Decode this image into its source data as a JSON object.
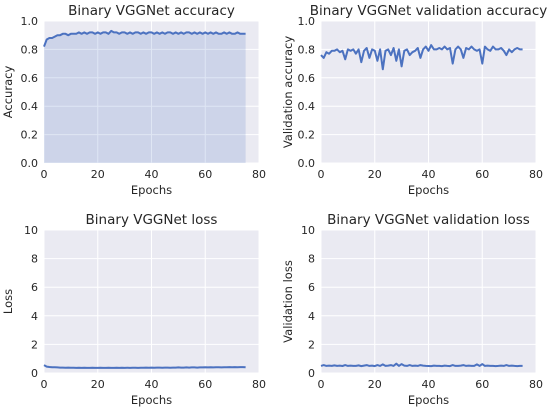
{
  "chart_data": [
    {
      "type": "area",
      "title": "Binary VGGNet accuracy",
      "xlabel": "Epochs",
      "ylabel": "Accuracy",
      "xlim": [
        0,
        80
      ],
      "ylim": [
        0,
        1.0
      ],
      "xticks": [
        "0",
        "20",
        "40",
        "60",
        "80"
      ],
      "yticks": [
        "0.0",
        "0.2",
        "0.4",
        "0.6",
        "0.8",
        "1.0"
      ],
      "grid": true,
      "color": "#4c72c0",
      "x": [
        0,
        1,
        2,
        3,
        4,
        5,
        6,
        7,
        8,
        9,
        10,
        11,
        12,
        13,
        14,
        15,
        16,
        17,
        18,
        19,
        20,
        21,
        22,
        23,
        24,
        25,
        26,
        27,
        28,
        29,
        30,
        31,
        32,
        33,
        34,
        35,
        36,
        37,
        38,
        39,
        40,
        41,
        42,
        43,
        44,
        45,
        46,
        47,
        48,
        49,
        50,
        51,
        52,
        53,
        54,
        55,
        56,
        57,
        58,
        59,
        60,
        61,
        62,
        63,
        64,
        65,
        66,
        67,
        68,
        69,
        70,
        71,
        72,
        73,
        74,
        75
      ],
      "values": [
        0.82,
        0.87,
        0.88,
        0.88,
        0.89,
        0.9,
        0.9,
        0.91,
        0.91,
        0.9,
        0.91,
        0.91,
        0.91,
        0.92,
        0.91,
        0.92,
        0.91,
        0.92,
        0.92,
        0.91,
        0.92,
        0.91,
        0.92,
        0.92,
        0.91,
        0.93,
        0.92,
        0.92,
        0.91,
        0.92,
        0.92,
        0.91,
        0.92,
        0.91,
        0.92,
        0.92,
        0.91,
        0.92,
        0.91,
        0.92,
        0.92,
        0.91,
        0.92,
        0.91,
        0.92,
        0.91,
        0.92,
        0.92,
        0.91,
        0.92,
        0.91,
        0.92,
        0.91,
        0.92,
        0.92,
        0.91,
        0.92,
        0.91,
        0.92,
        0.91,
        0.92,
        0.91,
        0.92,
        0.91,
        0.92,
        0.91,
        0.91,
        0.92,
        0.91,
        0.92,
        0.91,
        0.91,
        0.92,
        0.91,
        0.91,
        0.91
      ]
    },
    {
      "type": "line",
      "title": "Binary VGGNet validation accuracy",
      "xlabel": "Epochs",
      "ylabel": "Validation accuracy",
      "xlim": [
        0,
        80
      ],
      "ylim": [
        0,
        1.0
      ],
      "xticks": [
        "0",
        "20",
        "40",
        "60",
        "80"
      ],
      "yticks": [
        "0.0",
        "0.2",
        "0.4",
        "0.6",
        "0.8",
        "1.0"
      ],
      "grid": true,
      "color": "#4c72c0",
      "x": [
        0,
        1,
        2,
        3,
        4,
        5,
        6,
        7,
        8,
        9,
        10,
        11,
        12,
        13,
        14,
        15,
        16,
        17,
        18,
        19,
        20,
        21,
        22,
        23,
        24,
        25,
        26,
        27,
        28,
        29,
        30,
        31,
        32,
        33,
        34,
        35,
        36,
        37,
        38,
        39,
        40,
        41,
        42,
        43,
        44,
        45,
        46,
        47,
        48,
        49,
        50,
        51,
        52,
        53,
        54,
        55,
        56,
        57,
        58,
        59,
        60,
        61,
        62,
        63,
        64,
        65,
        66,
        67,
        68,
        69,
        70,
        71,
        72,
        73,
        74,
        75
      ],
      "values": [
        0.76,
        0.74,
        0.78,
        0.77,
        0.79,
        0.79,
        0.8,
        0.78,
        0.79,
        0.73,
        0.8,
        0.79,
        0.8,
        0.77,
        0.8,
        0.71,
        0.79,
        0.81,
        0.74,
        0.8,
        0.79,
        0.72,
        0.8,
        0.66,
        0.79,
        0.8,
        0.76,
        0.81,
        0.72,
        0.8,
        0.68,
        0.79,
        0.8,
        0.76,
        0.78,
        0.79,
        0.81,
        0.74,
        0.8,
        0.82,
        0.79,
        0.83,
        0.8,
        0.8,
        0.81,
        0.8,
        0.82,
        0.8,
        0.81,
        0.7,
        0.8,
        0.82,
        0.8,
        0.74,
        0.81,
        0.8,
        0.82,
        0.8,
        0.79,
        0.8,
        0.7,
        0.82,
        0.8,
        0.79,
        0.82,
        0.8,
        0.8,
        0.81,
        0.79,
        0.76,
        0.8,
        0.78,
        0.8,
        0.81,
        0.8,
        0.8
      ]
    },
    {
      "type": "line",
      "title": "Binary VGGNet loss",
      "xlabel": "Epochs",
      "ylabel": "Loss",
      "xlim": [
        0,
        80
      ],
      "ylim": [
        0,
        10
      ],
      "xticks": [
        "0",
        "20",
        "40",
        "60",
        "80"
      ],
      "yticks": [
        "0",
        "2",
        "4",
        "6",
        "8",
        "10"
      ],
      "grid": true,
      "color": "#4c72c0",
      "x": [
        0,
        1,
        2,
        3,
        4,
        5,
        6,
        7,
        8,
        9,
        10,
        11,
        12,
        13,
        14,
        15,
        16,
        17,
        18,
        19,
        20,
        21,
        22,
        23,
        24,
        25,
        26,
        27,
        28,
        29,
        30,
        31,
        32,
        33,
        34,
        35,
        36,
        37,
        38,
        39,
        40,
        41,
        42,
        43,
        44,
        45,
        46,
        47,
        48,
        49,
        50,
        51,
        52,
        53,
        54,
        55,
        56,
        57,
        58,
        59,
        60,
        61,
        62,
        63,
        64,
        65,
        66,
        67,
        68,
        69,
        70,
        71,
        72,
        73,
        74,
        75
      ],
      "values": [
        0.55,
        0.45,
        0.42,
        0.4,
        0.4,
        0.39,
        0.38,
        0.38,
        0.37,
        0.38,
        0.37,
        0.37,
        0.36,
        0.37,
        0.36,
        0.37,
        0.36,
        0.36,
        0.37,
        0.36,
        0.36,
        0.37,
        0.36,
        0.36,
        0.37,
        0.36,
        0.36,
        0.37,
        0.36,
        0.37,
        0.36,
        0.37,
        0.36,
        0.37,
        0.37,
        0.36,
        0.37,
        0.37,
        0.38,
        0.37,
        0.38,
        0.37,
        0.38,
        0.38,
        0.37,
        0.38,
        0.38,
        0.37,
        0.38,
        0.38,
        0.39,
        0.38,
        0.38,
        0.39,
        0.38,
        0.39,
        0.39,
        0.38,
        0.39,
        0.39,
        0.4,
        0.39,
        0.4,
        0.39,
        0.4,
        0.4,
        0.39,
        0.4,
        0.4,
        0.41,
        0.4,
        0.41,
        0.4,
        0.41,
        0.41,
        0.4
      ]
    },
    {
      "type": "line",
      "title": "Binary VGGNet validation loss",
      "xlabel": "Epochs",
      "ylabel": "Validation loss",
      "xlim": [
        0,
        80
      ],
      "ylim": [
        0,
        10
      ],
      "xticks": [
        "0",
        "20",
        "40",
        "60",
        "80"
      ],
      "yticks": [
        "0",
        "2",
        "4",
        "6",
        "8",
        "10"
      ],
      "grid": true,
      "color": "#4c72c0",
      "x": [
        0,
        1,
        2,
        3,
        4,
        5,
        6,
        7,
        8,
        9,
        10,
        11,
        12,
        13,
        14,
        15,
        16,
        17,
        18,
        19,
        20,
        21,
        22,
        23,
        24,
        25,
        26,
        27,
        28,
        29,
        30,
        31,
        32,
        33,
        34,
        35,
        36,
        37,
        38,
        39,
        40,
        41,
        42,
        43,
        44,
        45,
        46,
        47,
        48,
        49,
        50,
        51,
        52,
        53,
        54,
        55,
        56,
        57,
        58,
        59,
        60,
        61,
        62,
        63,
        64,
        65,
        66,
        67,
        68,
        69,
        70,
        71,
        72,
        73,
        74,
        75
      ],
      "values": [
        0.5,
        0.55,
        0.5,
        0.52,
        0.5,
        0.53,
        0.5,
        0.52,
        0.49,
        0.55,
        0.5,
        0.52,
        0.5,
        0.5,
        0.53,
        0.48,
        0.52,
        0.55,
        0.5,
        0.52,
        0.48,
        0.55,
        0.5,
        0.6,
        0.5,
        0.52,
        0.55,
        0.5,
        0.65,
        0.5,
        0.62,
        0.52,
        0.5,
        0.55,
        0.5,
        0.52,
        0.5,
        0.55,
        0.52,
        0.5,
        0.49,
        0.48,
        0.52,
        0.5,
        0.5,
        0.48,
        0.52,
        0.5,
        0.48,
        0.55,
        0.5,
        0.5,
        0.52,
        0.55,
        0.5,
        0.52,
        0.5,
        0.5,
        0.6,
        0.5,
        0.62,
        0.5,
        0.52,
        0.5,
        0.5,
        0.48,
        0.5,
        0.52,
        0.5,
        0.55,
        0.5,
        0.52,
        0.5,
        0.48,
        0.5,
        0.5
      ]
    }
  ]
}
